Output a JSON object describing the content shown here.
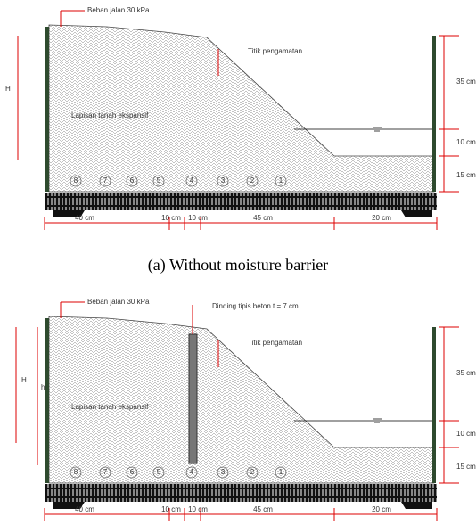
{
  "panels": [
    {
      "load_label": "Beban jalan 30 kPa",
      "observation_label": "Titik pengamatan",
      "soil_label": "Lapisan tanah ekspansif",
      "height_label": "H",
      "markers": [
        8,
        7,
        6,
        5,
        4,
        3,
        2,
        1
      ],
      "right_dimensions": [
        "35 cm",
        "10 cm",
        "15 cm"
      ],
      "bottom_dimensions": [
        "40 cm",
        "10 cm",
        "10 cm",
        "45 cm",
        "20 cm"
      ],
      "caption": "(a) Without moisture barrier"
    },
    {
      "load_label": "Beban jalan 30 kPa",
      "wall_label": "Dinding tipis beton t = 7 cm",
      "observation_label": "Titik pengamatan",
      "soil_label": "Lapisan tanah ekspansif",
      "height_label": "H",
      "inner_height_label": "h",
      "markers": [
        8,
        7,
        6,
        5,
        4,
        3,
        2,
        1
      ],
      "right_dimensions": [
        "35 cm",
        "10 cm",
        "15 cm"
      ],
      "bottom_dimensions": [
        "40 cm",
        "10 cm",
        "10 cm",
        "45 cm",
        "20 cm"
      ]
    }
  ]
}
